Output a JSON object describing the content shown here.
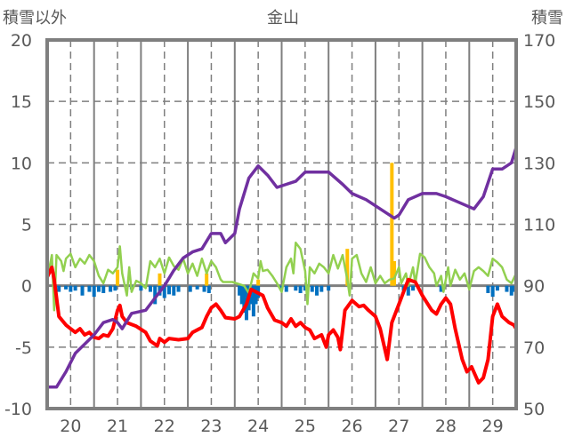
{
  "chart_data": {
    "type": "line",
    "title": "金山",
    "ylabel": "積雪以外",
    "y2label": "積雪",
    "xlim": [
      19.5,
      29.5
    ],
    "ylim": [
      -10,
      20
    ],
    "y2lim": [
      50,
      170
    ],
    "xticks": [
      20,
      21,
      22,
      23,
      24,
      25,
      26,
      27,
      28,
      29
    ],
    "yticks": [
      -10,
      -5,
      0,
      5,
      10,
      15,
      20
    ],
    "y2ticks": [
      50,
      70,
      90,
      110,
      130,
      150,
      170
    ],
    "grid": true,
    "colors": {
      "temperature": "#ff0000",
      "snow_depth": "#7030a0",
      "green": "#92d050",
      "blue": "#0070c0",
      "orange": "#ffc000",
      "axis": "#7f7f7f"
    },
    "series": [
      {
        "name": "red",
        "axis": "left",
        "points": [
          [
            19.5,
            0.7
          ],
          [
            19.6,
            1.5
          ],
          [
            19.65,
            0.5
          ],
          [
            19.75,
            -2.5
          ],
          [
            19.9,
            -3.2
          ],
          [
            20.0,
            -3.5
          ],
          [
            20.1,
            -3.8
          ],
          [
            20.2,
            -3.5
          ],
          [
            20.3,
            -4.0
          ],
          [
            20.4,
            -3.8
          ],
          [
            20.5,
            -4.2
          ],
          [
            20.6,
            -4.3
          ],
          [
            20.7,
            -4.0
          ],
          [
            20.8,
            -4.1
          ],
          [
            20.9,
            -3.5
          ],
          [
            21.0,
            -2.0
          ],
          [
            21.05,
            -1.6
          ],
          [
            21.1,
            -2.5
          ],
          [
            21.2,
            -3.0
          ],
          [
            21.4,
            -3.3
          ],
          [
            21.6,
            -3.8
          ],
          [
            21.7,
            -4.5
          ],
          [
            21.85,
            -4.9
          ],
          [
            21.9,
            -4.3
          ],
          [
            22.0,
            -4.6
          ],
          [
            22.1,
            -4.3
          ],
          [
            22.3,
            -4.4
          ],
          [
            22.5,
            -4.3
          ],
          [
            22.6,
            -3.8
          ],
          [
            22.8,
            -3.4
          ],
          [
            22.9,
            -2.5
          ],
          [
            23.0,
            -1.8
          ],
          [
            23.1,
            -1.5
          ],
          [
            23.2,
            -2.0
          ],
          [
            23.3,
            -2.6
          ],
          [
            23.5,
            -2.7
          ],
          [
            23.6,
            -2.5
          ],
          [
            23.75,
            -1.5
          ],
          [
            23.85,
            -0.3
          ],
          [
            23.95,
            -0.5
          ],
          [
            24.1,
            -0.8
          ],
          [
            24.2,
            -1.8
          ],
          [
            24.35,
            -2.8
          ],
          [
            24.5,
            -3.0
          ],
          [
            24.6,
            -3.3
          ],
          [
            24.7,
            -2.7
          ],
          [
            24.8,
            -3.3
          ],
          [
            24.9,
            -3.0
          ],
          [
            25.0,
            -3.4
          ],
          [
            25.1,
            -3.6
          ],
          [
            25.2,
            -4.3
          ],
          [
            25.35,
            -4.0
          ],
          [
            25.45,
            -5.0
          ],
          [
            25.5,
            -4.0
          ],
          [
            25.6,
            -3.6
          ],
          [
            25.7,
            -4.2
          ],
          [
            25.75,
            -5.2
          ],
          [
            25.85,
            -2.0
          ],
          [
            26.0,
            -1.2
          ],
          [
            26.15,
            -1.7
          ],
          [
            26.25,
            -1.6
          ],
          [
            26.35,
            -2.0
          ],
          [
            26.5,
            -2.5
          ],
          [
            26.6,
            -3.5
          ],
          [
            26.75,
            -6.0
          ],
          [
            26.85,
            -3.0
          ],
          [
            27.0,
            -1.5
          ],
          [
            27.1,
            -0.5
          ],
          [
            27.2,
            0.5
          ],
          [
            27.35,
            0.3
          ],
          [
            27.5,
            -0.8
          ],
          [
            27.7,
            -2.0
          ],
          [
            27.8,
            -2.3
          ],
          [
            27.9,
            -1.5
          ],
          [
            28.0,
            -1.0
          ],
          [
            28.1,
            -1.5
          ],
          [
            28.2,
            -3.5
          ],
          [
            28.35,
            -6.0
          ],
          [
            28.45,
            -7.0
          ],
          [
            28.55,
            -6.6
          ],
          [
            28.7,
            -7.9
          ],
          [
            28.8,
            -7.5
          ],
          [
            28.9,
            -6.0
          ],
          [
            29.0,
            -2.5
          ],
          [
            29.1,
            -1.5
          ],
          [
            29.2,
            -2.5
          ],
          [
            29.35,
            -3.0
          ],
          [
            29.45,
            -3.2
          ],
          [
            29.5,
            -3.5
          ]
        ]
      },
      {
        "name": "green",
        "axis": "left",
        "points": [
          [
            19.5,
            0.3
          ],
          [
            19.55,
            1.5
          ],
          [
            19.6,
            2.5
          ],
          [
            19.65,
            -2.0
          ],
          [
            19.7,
            2.5
          ],
          [
            19.8,
            2.0
          ],
          [
            19.85,
            1.2
          ],
          [
            19.9,
            2.2
          ],
          [
            20.0,
            2.6
          ],
          [
            20.1,
            1.5
          ],
          [
            20.2,
            2.2
          ],
          [
            20.3,
            1.8
          ],
          [
            20.4,
            2.5
          ],
          [
            20.5,
            2.0
          ],
          [
            20.6,
            0.8
          ],
          [
            20.7,
            0.2
          ],
          [
            20.8,
            1.3
          ],
          [
            20.9,
            1.0
          ],
          [
            21.0,
            1.5
          ],
          [
            21.05,
            3.2
          ],
          [
            21.1,
            1.0
          ],
          [
            21.2,
            -0.8
          ],
          [
            21.25,
            1.5
          ],
          [
            21.3,
            -0.5
          ],
          [
            21.4,
            0.4
          ],
          [
            21.5,
            0.2
          ],
          [
            21.6,
            -0.2
          ],
          [
            21.7,
            2.0
          ],
          [
            21.8,
            1.5
          ],
          [
            21.9,
            2.2
          ],
          [
            22.0,
            1.0
          ],
          [
            22.1,
            2.3
          ],
          [
            22.2,
            1.6
          ],
          [
            22.3,
            1.3
          ],
          [
            22.4,
            2.2
          ],
          [
            22.5,
            1.0
          ],
          [
            22.6,
            1.8
          ],
          [
            22.7,
            0.8
          ],
          [
            22.8,
            2.2
          ],
          [
            22.9,
            1.0
          ],
          [
            23.0,
            2.0
          ],
          [
            23.1,
            1.5
          ],
          [
            23.2,
            0.5
          ],
          [
            23.25,
            0.3
          ],
          [
            23.45,
            0.3
          ],
          [
            23.7,
            0.0
          ],
          [
            23.8,
            -0.6
          ],
          [
            23.9,
            1.0
          ],
          [
            24.0,
            0.6
          ],
          [
            24.05,
            2.0
          ],
          [
            24.1,
            1.2
          ],
          [
            24.2,
            1.3
          ],
          [
            24.3,
            0.8
          ],
          [
            24.4,
            0.2
          ],
          [
            24.5,
            -0.5
          ],
          [
            24.6,
            1.5
          ],
          [
            24.7,
            2.2
          ],
          [
            24.75,
            1.0
          ],
          [
            24.8,
            3.5
          ],
          [
            24.9,
            3.0
          ],
          [
            25.0,
            1.2
          ],
          [
            25.05,
            -1.5
          ],
          [
            25.1,
            1.5
          ],
          [
            25.2,
            1.0
          ],
          [
            25.3,
            1.8
          ],
          [
            25.4,
            1.5
          ],
          [
            25.5,
            1.0
          ],
          [
            25.6,
            2.5
          ],
          [
            25.7,
            1.4
          ],
          [
            25.8,
            2.5
          ],
          [
            25.9,
            0.5
          ],
          [
            25.95,
            -0.8
          ],
          [
            26.0,
            2.2
          ],
          [
            26.1,
            2.5
          ],
          [
            26.2,
            1.0
          ],
          [
            26.3,
            0.3
          ],
          [
            26.4,
            1.5
          ],
          [
            26.5,
            0.2
          ],
          [
            26.6,
            0.8
          ],
          [
            26.7,
            0.2
          ],
          [
            26.8,
            0.5
          ],
          [
            26.9,
            0.6
          ],
          [
            27.0,
            1.5
          ],
          [
            27.05,
            0.2
          ],
          [
            27.15,
            1.0
          ],
          [
            27.2,
            0.0
          ],
          [
            27.3,
            1.5
          ],
          [
            27.35,
            0.2
          ],
          [
            27.45,
            2.6
          ],
          [
            27.55,
            2.3
          ],
          [
            27.65,
            1.5
          ],
          [
            27.75,
            1.0
          ],
          [
            27.8,
            0.0
          ],
          [
            27.9,
            0.8
          ],
          [
            27.95,
            -0.5
          ],
          [
            28.05,
            1.5
          ],
          [
            28.1,
            0.0
          ],
          [
            28.2,
            1.3
          ],
          [
            28.3,
            0.5
          ],
          [
            28.4,
            1.0
          ],
          [
            28.5,
            -0.3
          ],
          [
            28.6,
            1.2
          ],
          [
            28.7,
            1.5
          ],
          [
            28.8,
            1.2
          ],
          [
            28.9,
            0.8
          ],
          [
            29.0,
            2.2
          ],
          [
            29.1,
            1.9
          ],
          [
            29.2,
            1.5
          ],
          [
            29.3,
            0.5
          ],
          [
            29.4,
            0.2
          ],
          [
            29.5,
            1.0
          ]
        ]
      },
      {
        "name": "snow_depth",
        "axis": "right",
        "points": [
          [
            19.5,
            57
          ],
          [
            19.7,
            57
          ],
          [
            19.9,
            62
          ],
          [
            20.1,
            68
          ],
          [
            20.3,
            71
          ],
          [
            20.5,
            74
          ],
          [
            20.7,
            78
          ],
          [
            20.9,
            79
          ],
          [
            21.0,
            78
          ],
          [
            21.1,
            76
          ],
          [
            21.3,
            81
          ],
          [
            21.6,
            82
          ],
          [
            21.8,
            86
          ],
          [
            22.0,
            90
          ],
          [
            22.2,
            95
          ],
          [
            22.4,
            99
          ],
          [
            22.6,
            101
          ],
          [
            22.8,
            102
          ],
          [
            23.0,
            107
          ],
          [
            23.2,
            107
          ],
          [
            23.3,
            104
          ],
          [
            23.5,
            107
          ],
          [
            23.6,
            115
          ],
          [
            23.8,
            125
          ],
          [
            24.0,
            129
          ],
          [
            24.2,
            126
          ],
          [
            24.4,
            122
          ],
          [
            24.6,
            123
          ],
          [
            24.8,
            124
          ],
          [
            25.0,
            127
          ],
          [
            25.3,
            127
          ],
          [
            25.5,
            127
          ],
          [
            25.8,
            123
          ],
          [
            26.0,
            120
          ],
          [
            26.3,
            118
          ],
          [
            26.6,
            115
          ],
          [
            26.9,
            112
          ],
          [
            27.0,
            113
          ],
          [
            27.2,
            118
          ],
          [
            27.5,
            120
          ],
          [
            27.8,
            120
          ],
          [
            28.0,
            119
          ],
          [
            28.3,
            117
          ],
          [
            28.6,
            115
          ],
          [
            28.8,
            119
          ],
          [
            29.0,
            128
          ],
          [
            29.2,
            128
          ],
          [
            29.4,
            130
          ],
          [
            29.5,
            135
          ]
        ]
      }
    ],
    "bars": [
      {
        "name": "orange",
        "axis": "left",
        "points": [
          [
            21.0,
            1.3
          ],
          [
            21.9,
            1.0
          ],
          [
            22.9,
            1.0
          ],
          [
            24.0,
            0.5
          ],
          [
            25.9,
            3.0
          ],
          [
            26.85,
            10.0
          ],
          [
            26.9,
            2.0
          ]
        ]
      },
      {
        "name": "blue",
        "axis": "left",
        "points": [
          [
            19.75,
            -0.5
          ],
          [
            19.9,
            -0.3
          ],
          [
            20.0,
            -0.5
          ],
          [
            20.1,
            -0.4
          ],
          [
            20.25,
            -0.8
          ],
          [
            20.4,
            -0.5
          ],
          [
            20.5,
            -0.9
          ],
          [
            20.6,
            -0.5
          ],
          [
            20.7,
            -0.6
          ],
          [
            20.85,
            -0.5
          ],
          [
            20.95,
            -0.4
          ],
          [
            21.3,
            -0.3
          ],
          [
            21.5,
            -0.4
          ],
          [
            21.7,
            -0.5
          ],
          [
            21.8,
            -1.5
          ],
          [
            21.9,
            -0.8
          ],
          [
            22.0,
            -1.0
          ],
          [
            22.1,
            -0.7
          ],
          [
            22.2,
            -0.8
          ],
          [
            22.3,
            -0.5
          ],
          [
            22.55,
            -0.5
          ],
          [
            22.7,
            -0.3
          ],
          [
            22.85,
            -0.5
          ],
          [
            22.95,
            -0.6
          ],
          [
            23.6,
            -0.8
          ],
          [
            23.65,
            -1.5
          ],
          [
            23.7,
            -2.2
          ],
          [
            23.75,
            -2.8
          ],
          [
            23.8,
            -2.0
          ],
          [
            23.85,
            -1.5
          ],
          [
            23.9,
            -2.5
          ],
          [
            23.95,
            -1.5
          ],
          [
            24.0,
            -1.0
          ],
          [
            24.5,
            -0.3
          ],
          [
            24.6,
            -0.5
          ],
          [
            24.8,
            -0.4
          ],
          [
            24.9,
            -0.6
          ],
          [
            25.0,
            -0.4
          ],
          [
            25.15,
            -0.5
          ],
          [
            25.25,
            -0.8
          ],
          [
            25.35,
            -0.5
          ],
          [
            25.5,
            -0.4
          ],
          [
            27.1,
            -0.4
          ],
          [
            27.2,
            -0.8
          ],
          [
            27.3,
            -0.4
          ],
          [
            27.9,
            -0.5
          ],
          [
            28.9,
            -0.6
          ],
          [
            29.0,
            -0.9
          ],
          [
            29.1,
            -0.4
          ],
          [
            29.3,
            -0.5
          ],
          [
            29.4,
            -0.8
          ],
          [
            29.45,
            -0.5
          ]
        ]
      }
    ]
  }
}
